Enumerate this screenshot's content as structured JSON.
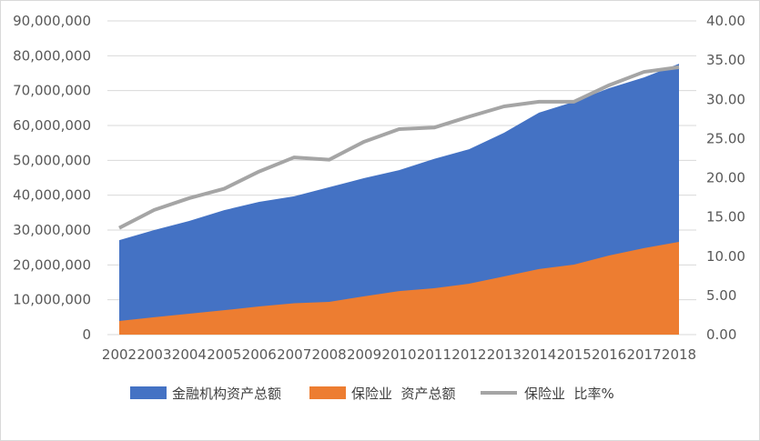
{
  "chart_data": {
    "type": "area",
    "title": "",
    "categories": [
      "2002",
      "2003",
      "2004",
      "2005",
      "2006",
      "2007",
      "2008",
      "2009",
      "2010",
      "2011",
      "2012",
      "2013",
      "2014",
      "2015",
      "2016",
      "2017",
      "2018"
    ],
    "y_left": {
      "ylim": [
        0,
        90000000
      ],
      "ticks": [
        "0",
        "10,000,000",
        "20,000,000",
        "30,000,000",
        "40,000,000",
        "50,000,000",
        "60,000,000",
        "70,000,000",
        "80,000,000",
        "90,000,000"
      ]
    },
    "y_right": {
      "ylim": [
        0,
        40
      ],
      "ticks": [
        "0.00",
        "5.00",
        "10.00",
        "15.00",
        "20.00",
        "25.00",
        "30.00",
        "35.00",
        "40.00"
      ]
    },
    "grid": true,
    "legend_position": "bottom",
    "series": [
      {
        "name": "金融机构资产总额",
        "type": "area",
        "axis": "left",
        "color": "#4472C4",
        "values": [
          27100000,
          30000000,
          32600000,
          35700000,
          38100000,
          39700000,
          42300000,
          44900000,
          47200000,
          50400000,
          53200000,
          57900000,
          63700000,
          66800000,
          70700000,
          73800000,
          77700000
        ]
      },
      {
        "name": "保险业  资产总额",
        "type": "area",
        "axis": "left",
        "color": "#ED7D31",
        "values": [
          3900000,
          5000000,
          6000000,
          7000000,
          8100000,
          9000000,
          9400000,
          11000000,
          12500000,
          13300000,
          14600000,
          16700000,
          18800000,
          20100000,
          22700000,
          24800000,
          26600000
        ]
      },
      {
        "name": "保险业  比率%",
        "type": "line",
        "axis": "right",
        "color": "#A5A5A5",
        "values": [
          13.6,
          15.9,
          17.4,
          18.6,
          20.8,
          22.6,
          22.3,
          24.6,
          26.2,
          26.4,
          27.8,
          29.1,
          29.7,
          29.7,
          31.8,
          33.5,
          34.1
        ]
      }
    ]
  }
}
